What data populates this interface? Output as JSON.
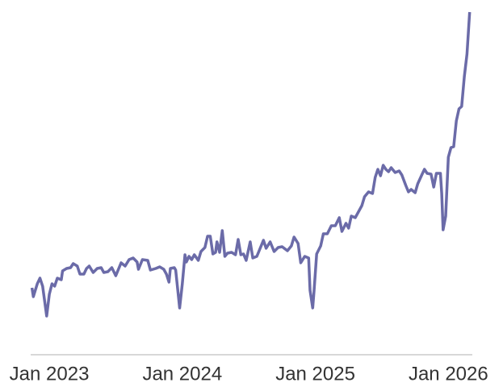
{
  "chart_data": {
    "type": "line",
    "color": "#6b6ba8",
    "x": [
      2022.87,
      2022.88,
      2022.91,
      2022.93,
      2022.95,
      2022.98,
      2023.0,
      2023.02,
      2023.04,
      2023.06,
      2023.09,
      2023.1,
      2023.13,
      2023.16,
      2023.18,
      2023.21,
      2023.23,
      2023.26,
      2023.28,
      2023.3,
      2023.33,
      2023.36,
      2023.39,
      2023.41,
      2023.44,
      2023.47,
      2023.5,
      2023.54,
      2023.57,
      2023.6,
      2023.63,
      2023.66,
      2023.67,
      2023.7,
      2023.74,
      2023.76,
      2023.8,
      2023.83,
      2023.86,
      2023.88,
      2023.9,
      2023.91,
      2023.94,
      2023.95,
      2023.98,
      2024.0,
      2024.02,
      2024.03,
      2024.05,
      2024.07,
      2024.09,
      2024.12,
      2024.14,
      2024.17,
      2024.19,
      2024.21,
      2024.23,
      2024.25,
      2024.26,
      2024.28,
      2024.3,
      2024.32,
      2024.34,
      2024.37,
      2024.4,
      2024.42,
      2024.44,
      2024.46,
      2024.48,
      2024.51,
      2024.53,
      2024.56,
      2024.58,
      2024.61,
      2024.63,
      2024.66,
      2024.69,
      2024.72,
      2024.75,
      2024.79,
      2024.82,
      2024.84,
      2024.87,
      2024.89,
      2024.92,
      2024.95,
      2024.96,
      2024.98,
      2024.99,
      2025.01,
      2025.04,
      2025.06,
      2025.09,
      2025.12,
      2025.15,
      2025.18,
      2025.2,
      2025.23,
      2025.25,
      2025.27,
      2025.3,
      2025.32,
      2025.35,
      2025.37,
      2025.4,
      2025.43,
      2025.45,
      2025.47,
      2025.49,
      2025.51,
      2025.53,
      2025.55,
      2025.57,
      2025.6,
      2025.63,
      2025.65,
      2025.68,
      2025.7,
      2025.72,
      2025.75,
      2025.77,
      2025.8,
      2025.82,
      2025.84,
      2025.87,
      2025.89,
      2025.91,
      2025.94,
      2025.95,
      2025.96,
      2025.98,
      2026.0,
      2026.02,
      2026.04,
      2026.06,
      2026.08,
      2026.1,
      2026.12,
      2026.14,
      2026.16
    ],
    "values": [
      83,
      72,
      88,
      95,
      85,
      48,
      75,
      88,
      85,
      95,
      93,
      104,
      107,
      108,
      113,
      110,
      100,
      100,
      107,
      110,
      102,
      107,
      108,
      102,
      103,
      108,
      98,
      114,
      110,
      118,
      120,
      115,
      106,
      118,
      117,
      105,
      107,
      109,
      106,
      100,
      90,
      107,
      108,
      105,
      58,
      88,
      124,
      115,
      122,
      118,
      124,
      117,
      128,
      133,
      147,
      147,
      125,
      127,
      140,
      127,
      154,
      122,
      126,
      127,
      124,
      143,
      124,
      125,
      117,
      140,
      120,
      122,
      130,
      142,
      132,
      140,
      128,
      133,
      134,
      129,
      135,
      146,
      138,
      114,
      122,
      120,
      80,
      58,
      78,
      125,
      135,
      150,
      150,
      160,
      160,
      170,
      153,
      163,
      157,
      172,
      170,
      176,
      185,
      196,
      202,
      200,
      220,
      230,
      222,
      235,
      230,
      227,
      232,
      226,
      228,
      223,
      210,
      202,
      205,
      201,
      212,
      223,
      230,
      225,
      224,
      208,
      225,
      225,
      200,
      155,
      172,
      245,
      257,
      258,
      290,
      305,
      308,
      345,
      373,
      425
    ],
    "xlim": [
      2022.86,
      2026.18
    ],
    "ylim": [
      0,
      430
    ],
    "xticks": [
      {
        "value": 2023,
        "label": "Jan 2023"
      },
      {
        "value": 2024,
        "label": "Jan 2024"
      },
      {
        "value": 2025,
        "label": "Jan 2025"
      },
      {
        "value": 2026,
        "label": "Jan 2026"
      }
    ]
  }
}
